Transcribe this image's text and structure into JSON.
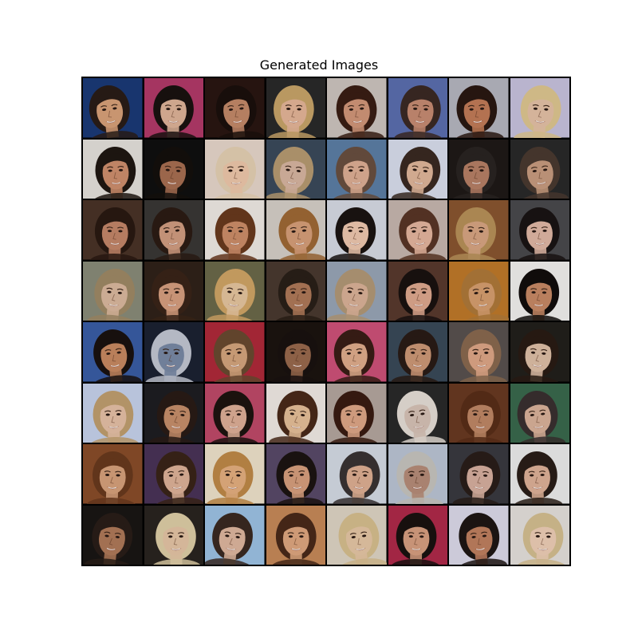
{
  "figure": {
    "title": "Generated Images"
  },
  "grid": {
    "rows": 8,
    "cols": 8,
    "cells": [
      {
        "bg": "#1b3a78",
        "skin": "#d9a27a",
        "hair": "#2a1d17"
      },
      {
        "bg": "#b43a6a",
        "skin": "#e0b59a",
        "hair": "#1a1210"
      },
      {
        "bg": "#2a1612",
        "skin": "#c58a6a",
        "hair": "#1b100c"
      },
      {
        "bg": "#2a2a2a",
        "skin": "#e6b79a",
        "hair": "#c9a56a"
      },
      {
        "bg": "#cfc6c0",
        "skin": "#d3977a",
        "hair": "#3a1e14"
      },
      {
        "bg": "#5c6fb0",
        "skin": "#c88c73",
        "hair": "#3b2a24"
      },
      {
        "bg": "#b7b8c2",
        "skin": "#c37c58",
        "hair": "#2a1812"
      },
      {
        "bg": "#c9c4e0",
        "skin": "#e7c3a8",
        "hair": "#e0c892"
      },
      {
        "bg": "#e7e3de",
        "skin": "#d0906e",
        "hair": "#1f1712"
      },
      {
        "bg": "#101010",
        "skin": "#a96f52",
        "hair": "#14100d"
      },
      {
        "bg": "#e9d8cc",
        "skin": "#f0c9ac",
        "hair": "#e7d2b5"
      },
      {
        "bg": "#3b4a5c",
        "skin": "#d9b7a2",
        "hair": "#b89c72"
      },
      {
        "bg": "#5d7fa6",
        "skin": "#e0b096",
        "hair": "#6a5040"
      },
      {
        "bg": "#dbe0ef",
        "skin": "#e2b89c",
        "hair": "#3a2a22"
      },
      {
        "bg": "#1f1a17",
        "skin": "#b88066",
        "hair": "#2a2422"
      },
      {
        "bg": "#2a2a2a",
        "skin": "#c99d80",
        "hair": "#4a3a30"
      },
      {
        "bg": "#4a3428",
        "skin": "#c5876a",
        "hair": "#2a1a12"
      },
      {
        "bg": "#3a3836",
        "skin": "#d39e82",
        "hair": "#2c1c14"
      },
      {
        "bg": "#f1ece6",
        "skin": "#cf8f6a",
        "hair": "#6a3a1e"
      },
      {
        "bg": "#d7d1c9",
        "skin": "#d8a07a",
        "hair": "#a06a36"
      },
      {
        "bg": "#d8dde6",
        "skin": "#f0c9b0",
        "hair": "#1b1412"
      },
      {
        "bg": "#c8b8b0",
        "skin": "#e7b7a0",
        "hair": "#5a3626"
      },
      {
        "bg": "#8a5630",
        "skin": "#d9a784",
        "hair": "#b9925a"
      },
      {
        "bg": "#4a4a4e",
        "skin": "#e2b9a6",
        "hair": "#1a1414"
      },
      {
        "bg": "#8a8c7a",
        "skin": "#ddbaa0",
        "hair": "#a08a66"
      },
      {
        "bg": "#30221a",
        "skin": "#d8a080",
        "hair": "#3a2418"
      },
      {
        "bg": "#6c6a4a",
        "skin": "#e8c7a0",
        "hair": "#d2a666"
      },
      {
        "bg": "#4a3a30",
        "skin": "#b07a5a",
        "hair": "#2a2018"
      },
      {
        "bg": "#9aa6b8",
        "skin": "#ddb49a",
        "hair": "#b49a78"
      },
      {
        "bg": "#5a3a2e",
        "skin": "#e0aa90",
        "hair": "#1a1210"
      },
      {
        "bg": "#c07a2a",
        "skin": "#d8a070",
        "hair": "#b07a3a"
      },
      {
        "bg": "#f4f2f0",
        "skin": "#c98a66",
        "hair": "#120e0c"
      },
      {
        "bg": "#3a5ea6",
        "skin": "#c98a62",
        "hair": "#1a1210"
      },
      {
        "bg": "#1c2232",
        "skin": "#7a8aa6",
        "hair": "#c4c8d4"
      },
      {
        "bg": "#b02a3a",
        "skin": "#d6a67e",
        "hair": "#6a4a30"
      },
      {
        "bg": "#1c1410",
        "skin": "#9a6a4e",
        "hair": "#1a1210"
      },
      {
        "bg": "#d0527a",
        "skin": "#e2ae8e",
        "hair": "#3a1e16"
      },
      {
        "bg": "#3a4a5a",
        "skin": "#cf9a78",
        "hair": "#2a1c16"
      },
      {
        "bg": "#5a5250",
        "skin": "#e0a888",
        "hair": "#8a6a50"
      },
      {
        "bg": "#22201c",
        "skin": "#e0c0a8",
        "hair": "#2a1c14"
      },
      {
        "bg": "#c8d4ee",
        "skin": "#e8c2a8",
        "hair": "#c2a070"
      },
      {
        "bg": "#1e1e22",
        "skin": "#c8906c",
        "hair": "#2a1c16"
      },
      {
        "bg": "#c04a6a",
        "skin": "#e0b098",
        "hair": "#1e1410"
      },
      {
        "bg": "#f2ece6",
        "skin": "#e8c09a",
        "hair": "#4a2a1a"
      },
      {
        "bg": "#b6a8a0",
        "skin": "#e0a888",
        "hair": "#3a1c12"
      },
      {
        "bg": "#2a2a2a",
        "skin": "#d8c4b8",
        "hair": "#e8e0d8"
      },
      {
        "bg": "#6a3a22",
        "skin": "#c08866",
        "hair": "#5a2e18"
      },
      {
        "bg": "#3a6a4e",
        "skin": "#dcb49c",
        "hair": "#3a3030"
      },
      {
        "bg": "#8a4e2a",
        "skin": "#d8a27c",
        "hair": "#6a3a1e"
      },
      {
        "bg": "#4a3458",
        "skin": "#e0b49a",
        "hair": "#3a2418"
      },
      {
        "bg": "#f0e4cc",
        "skin": "#e6b080",
        "hair": "#c08a48"
      },
      {
        "bg": "#5a4a6a",
        "skin": "#d8a07e",
        "hair": "#1c1412"
      },
      {
        "bg": "#d6dde6",
        "skin": "#e0b094",
        "hair": "#3a3434"
      },
      {
        "bg": "#bcc6d6",
        "skin": "#b88e7a",
        "hair": "#c8c6c0"
      },
      {
        "bg": "#3a3a40",
        "skin": "#d8b0a0",
        "hair": "#2a1e1a"
      },
      {
        "bg": "#eeeeee",
        "skin": "#e0b29a",
        "hair": "#2a1e18"
      },
      {
        "bg": "#1a1614",
        "skin": "#b07a5a",
        "hair": "#2a1e18"
      },
      {
        "bg": "#2a2420",
        "skin": "#e6c6a6",
        "hair": "#e0d0a8"
      },
      {
        "bg": "#9ec4e6",
        "skin": "#e0b8a0",
        "hair": "#3a2a22"
      },
      {
        "bg": "#c88a5a",
        "skin": "#e0a880",
        "hair": "#4a2a1a"
      },
      {
        "bg": "#e0d6c6",
        "skin": "#e8c8a6",
        "hair": "#d8c090"
      },
      {
        "bg": "#b02a4a",
        "skin": "#d8a082",
        "hair": "#1a1210"
      },
      {
        "bg": "#dedcec",
        "skin": "#c08060",
        "hair": "#1e1614"
      },
      {
        "bg": "#e6e2de",
        "skin": "#f0d0b8",
        "hair": "#d6c092"
      }
    ]
  }
}
